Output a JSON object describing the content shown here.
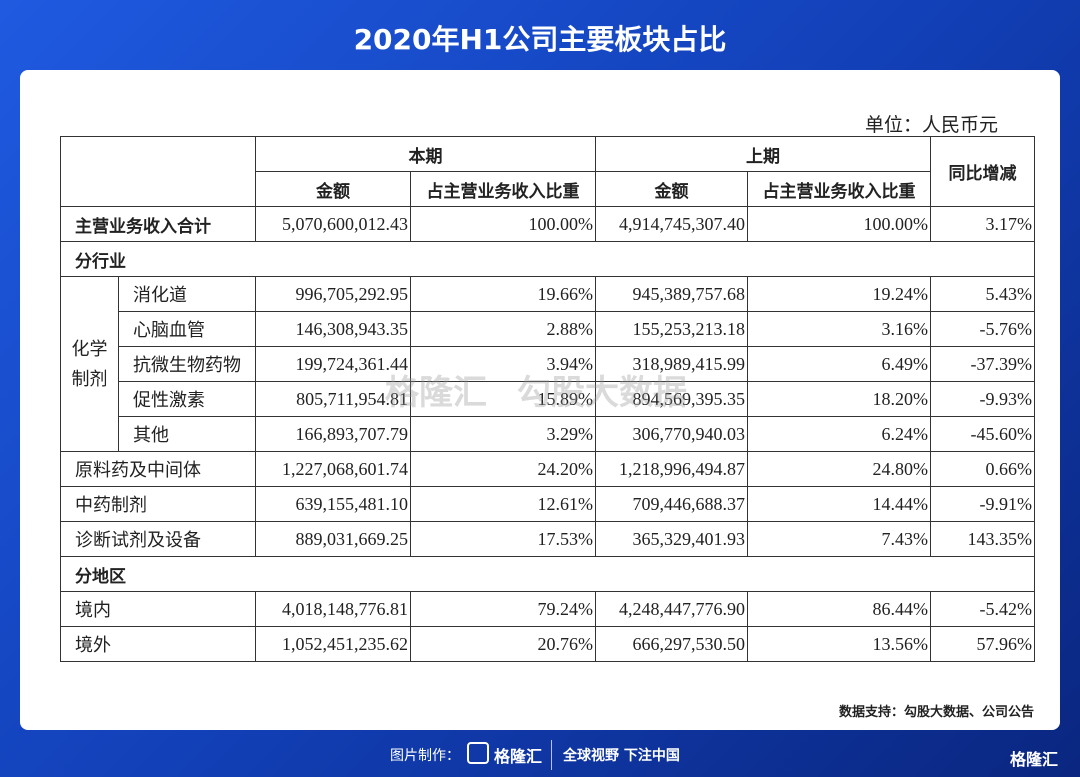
{
  "header": {
    "title": "2020年H1公司主要板块占比"
  },
  "unit": "单位：人民币元",
  "table": {
    "group_headers": [
      "本期",
      "上期",
      "同比增减"
    ],
    "sub_headers": [
      "金额",
      "占主营业务收入比重",
      "金额",
      "占主营业务收入比重"
    ],
    "total": [
      "主营业务收入合计",
      "5,070,600,012.43",
      "100.00%",
      "4,914,745,307.40",
      "100.00%",
      "3.17%"
    ],
    "sections": [
      {
        "title": "分行业",
        "group": {
          "label": "化学制剂",
          "rows": [
            [
              "消化道",
              "996,705,292.95",
              "19.66%",
              "945,389,757.68",
              "19.24%",
              "5.43%"
            ],
            [
              "心脑血管",
              "146,308,943.35",
              "2.88%",
              "155,253,213.18",
              "3.16%",
              "-5.76%"
            ],
            [
              "抗微生物药物",
              "199,724,361.44",
              "3.94%",
              "318,989,415.99",
              "6.49%",
              "-37.39%"
            ],
            [
              "促性激素",
              "805,711,954.81",
              "15.89%",
              "894,569,395.35",
              "18.20%",
              "-9.93%"
            ],
            [
              "其他",
              "166,893,707.79",
              "3.29%",
              "306,770,940.03",
              "6.24%",
              "-45.60%"
            ]
          ]
        },
        "rows": [
          [
            "原料药及中间体",
            "1,227,068,601.74",
            "24.20%",
            "1,218,996,494.87",
            "24.80%",
            "0.66%"
          ],
          [
            "中药制剂",
            "639,155,481.10",
            "12.61%",
            "709,446,688.37",
            "14.44%",
            "-9.91%"
          ],
          [
            "诊断试剂及设备",
            "889,031,669.25",
            "17.53%",
            "365,329,401.93",
            "7.43%",
            "143.35%"
          ]
        ]
      },
      {
        "title": "分地区",
        "rows": [
          [
            "境内",
            "4,018,148,776.81",
            "79.24%",
            "4,248,447,776.90",
            "86.44%",
            "-5.42%"
          ],
          [
            "境外",
            "1,052,451,235.62",
            "20.76%",
            "666,297,530.50",
            "13.56%",
            "57.96%"
          ]
        ]
      }
    ]
  },
  "watermark": {
    "brand": "格隆汇",
    "text": "勾股大数据"
  },
  "source": "数据支持：勾股大数据、公司公告",
  "footer": {
    "made_by": "图片制作：",
    "brand": "格隆汇",
    "slogan": "全球视野 下注中国",
    "corner_brand": "格隆汇"
  }
}
